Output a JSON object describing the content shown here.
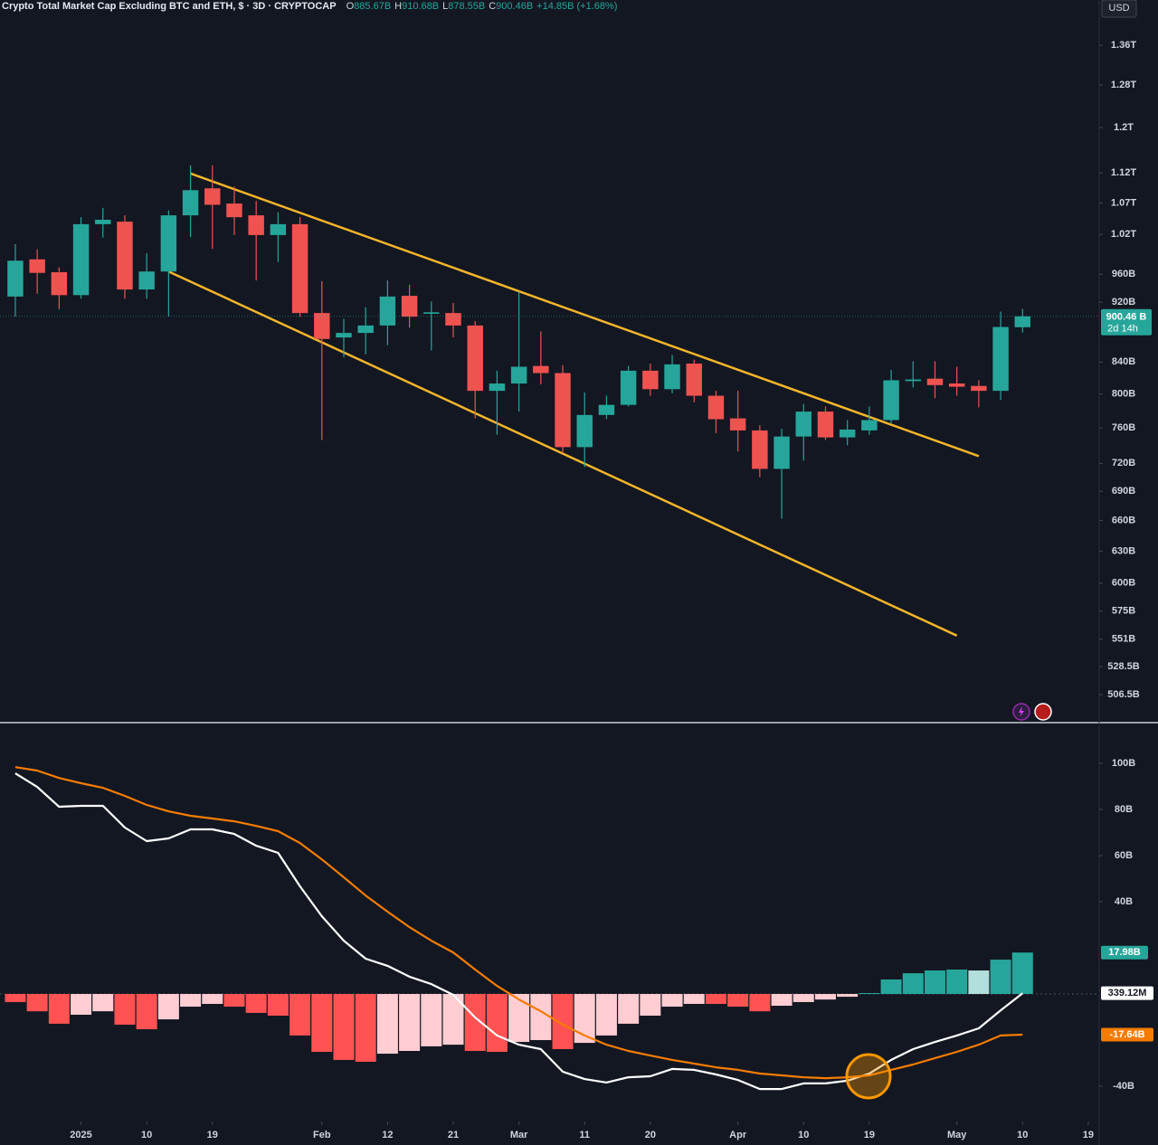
{
  "header": {
    "title": "Crypto Total Market Cap Excluding BTC and ETH, $ · 3D · CRYPTOCAP",
    "legend": [
      {
        "key": "O",
        "value": "885.67B"
      },
      {
        "key": "H",
        "value": "910.68B"
      },
      {
        "key": "L",
        "value": "878.55B"
      },
      {
        "key": "C",
        "value": "900.46B"
      }
    ],
    "change": "+14.85B (+1.68%)",
    "currency": "USD"
  },
  "chart_data": [
    {
      "type": "candlestick",
      "log_scale": true,
      "grid": false,
      "up_color": "#26a69a",
      "down_color": "#ef5350",
      "x": [
        0,
        1,
        2,
        3,
        4,
        5,
        6,
        7,
        8,
        9,
        10,
        11,
        12,
        13,
        14,
        15,
        16,
        17,
        18,
        19,
        20,
        21,
        22,
        23,
        24,
        25,
        26,
        27,
        28,
        29,
        30,
        31,
        32,
        33,
        34,
        35,
        36,
        37,
        38,
        39,
        40,
        41,
        42,
        43,
        44,
        45,
        46
      ],
      "xlim": [
        -0.7,
        49.5
      ],
      "xticks": [
        {
          "value": 3,
          "label": "2025"
        },
        {
          "value": 6,
          "label": "10"
        },
        {
          "value": 9,
          "label": "19"
        },
        {
          "value": 14,
          "label": "Feb"
        },
        {
          "value": 17,
          "label": "12"
        },
        {
          "value": 20,
          "label": "21"
        },
        {
          "value": 23,
          "label": "Mar"
        },
        {
          "value": 26,
          "label": "11"
        },
        {
          "value": 29,
          "label": "20"
        },
        {
          "value": 33,
          "label": "Apr"
        },
        {
          "value": 36,
          "label": "10"
        },
        {
          "value": 39,
          "label": "19"
        },
        {
          "value": 43,
          "label": "May"
        },
        {
          "value": 46,
          "label": "10"
        },
        {
          "value": 49,
          "label": "19"
        }
      ],
      "open": [
        928,
        982,
        963,
        930,
        1036,
        1040,
        938,
        964,
        1050,
        1094,
        1069,
        1050,
        1019,
        1036,
        905,
        872,
        878,
        888,
        929,
        904,
        905,
        888,
        804,
        813,
        835,
        826,
        738,
        775,
        787,
        829,
        806,
        838,
        798,
        771,
        757,
        714,
        750,
        779,
        749,
        757,
        769,
        816,
        819,
        813,
        810,
        804,
        885.67
      ],
      "high": [
        1005,
        997,
        970,
        1047,
        1062,
        1050,
        991,
        1058,
        1133,
        1133,
        1097,
        1073,
        1055,
        1047,
        950,
        897,
        913,
        951,
        945,
        921,
        919,
        894,
        829,
        935,
        880,
        836,
        802,
        798,
        835,
        838,
        849,
        843,
        804,
        804,
        763,
        759,
        788,
        785,
        769,
        785,
        830,
        841,
        841,
        834,
        817,
        907,
        910.68
      ],
      "low": [
        900,
        932,
        910,
        925,
        1015,
        925,
        925,
        900,
        1016,
        998,
        1019,
        951,
        978,
        900,
        746,
        846,
        850,
        862,
        885,
        855,
        872,
        771,
        752,
        779,
        812,
        731,
        716,
        770,
        785,
        798,
        801,
        790,
        754,
        733,
        705,
        662,
        723,
        746,
        740,
        752,
        765,
        808,
        795,
        798,
        784,
        793,
        878.55
      ],
      "close": [
        980,
        962,
        930,
        1036,
        1043,
        938,
        964,
        1050,
        1091,
        1067,
        1047,
        1019,
        1036,
        905,
        870,
        878,
        888,
        928,
        900,
        906,
        888,
        804,
        813,
        834,
        826,
        738,
        775,
        787,
        829,
        806,
        837,
        798,
        770,
        757,
        714,
        750,
        779,
        749,
        758,
        769,
        817,
        818,
        811,
        809,
        804,
        886,
        900.46
      ],
      "ylim": [
        486,
        1457
      ],
      "yticks": [
        {
          "value": 1360,
          "label": "1.36T"
        },
        {
          "value": 1280,
          "label": "1.28T"
        },
        {
          "value": 1200,
          "label": "1.2T"
        },
        {
          "value": 1120,
          "label": "1.12T"
        },
        {
          "value": 1070,
          "label": "1.07T"
        },
        {
          "value": 1020,
          "label": "1.02T"
        },
        {
          "value": 960,
          "label": "960B"
        },
        {
          "value": 920,
          "label": "920B"
        },
        {
          "value": 840,
          "label": "840B"
        },
        {
          "value": 800,
          "label": "800B"
        },
        {
          "value": 760,
          "label": "760B"
        },
        {
          "value": 720,
          "label": "720B"
        },
        {
          "value": 690,
          "label": "690B"
        },
        {
          "value": 660,
          "label": "660B"
        },
        {
          "value": 630,
          "label": "630B"
        },
        {
          "value": 600,
          "label": "600B"
        },
        {
          "value": 575,
          "label": "575B"
        },
        {
          "value": 551,
          "label": "551B"
        },
        {
          "value": 528.5,
          "label": "528.5B"
        },
        {
          "value": 506.5,
          "label": "506.5B"
        }
      ],
      "price_label": "900.46 B",
      "countdown": "2d 14h",
      "trendlines": [
        {
          "x": [
            8,
            44
          ],
          "y": [
            1119,
            728
          ],
          "color": "#f5b52a"
        },
        {
          "x": [
            7,
            43
          ],
          "y": [
            964,
            554
          ],
          "color": "#f5b52a"
        }
      ]
    },
    {
      "type": "macd",
      "x": [
        0,
        1,
        2,
        3,
        4,
        5,
        6,
        7,
        8,
        9,
        10,
        11,
        12,
        13,
        14,
        15,
        16,
        17,
        18,
        19,
        20,
        21,
        22,
        23,
        24,
        25,
        26,
        27,
        28,
        29,
        30,
        31,
        32,
        33,
        34,
        35,
        36,
        37,
        38,
        39,
        40,
        41,
        42,
        43,
        44,
        45,
        46
      ],
      "xlim": [
        -0.7,
        49.5
      ],
      "ylim": [
        -55.3,
        117.3
      ],
      "yticks": [
        {
          "value": 100,
          "label": "100B"
        },
        {
          "value": 80,
          "label": "80B"
        },
        {
          "value": 60,
          "label": "60B"
        },
        {
          "value": 40,
          "label": "40B"
        },
        {
          "value": -40,
          "label": "-40B"
        }
      ],
      "histogram": {
        "values": [
          -3.5,
          -7.5,
          -12.9,
          -9.0,
          -7.5,
          -13.3,
          -15.3,
          -11.0,
          -5.5,
          -4.3,
          -5.5,
          -8.2,
          -9.4,
          -18.0,
          -25.1,
          -28.6,
          -29.4,
          -25.9,
          -24.7,
          -22.7,
          -22.0,
          -24.7,
          -25.1,
          -20.8,
          -20.0,
          -23.9,
          -21.2,
          -18.0,
          -12.9,
          -9.4,
          -5.5,
          -4.3,
          -4.3,
          -5.5,
          -7.5,
          -5.1,
          -3.5,
          -2.4,
          -1.2,
          0.4,
          6.3,
          9.0,
          10.2,
          10.6,
          10.2,
          14.9,
          17.98
        ],
        "colors": {
          "up": "#26a69a",
          "up_fading": "#b2dfdb",
          "down": "#ff5252",
          "down_fading": "#ffcdd2"
        },
        "last_value_label": "17.98B"
      },
      "series": [
        {
          "color": "#ffffff",
          "values": [
            95.7,
            89.8,
            81.2,
            81.6,
            81.6,
            72.2,
            66.3,
            67.5,
            71.4,
            71.4,
            69.4,
            64.3,
            61.2,
            46.7,
            33.7,
            23.1,
            15.3,
            12.2,
            7.5,
            4.3,
            -0.4,
            -10.2,
            -18.0,
            -22.0,
            -23.9,
            -33.7,
            -36.9,
            -38.4,
            -36.1,
            -35.7,
            -32.5,
            -32.9,
            -34.9,
            -37.3,
            -41.2,
            -41.2,
            -38.8,
            -38.8,
            -37.6,
            -34.5,
            -28.6,
            -23.9,
            -20.8,
            -18.0,
            -14.9,
            -7.1,
            0.33912
          ],
          "last_value_label": "339.12M"
        },
        {
          "color": "#f57c00",
          "values": [
            98.4,
            96.9,
            93.7,
            91.4,
            89.4,
            85.9,
            82.0,
            79.2,
            77.3,
            76.1,
            74.9,
            72.9,
            70.6,
            65.5,
            58.4,
            50.6,
            42.7,
            35.7,
            29.0,
            23.1,
            18.0,
            10.6,
            3.5,
            -2.4,
            -7.5,
            -13.3,
            -18.0,
            -22.0,
            -24.7,
            -26.7,
            -28.6,
            -30.2,
            -31.8,
            -32.9,
            -34.5,
            -35.3,
            -36.1,
            -36.5,
            -36.1,
            -35.3,
            -32.9,
            -30.6,
            -27.8,
            -25.1,
            -22.0,
            -18.0,
            -17.64
          ],
          "last_value_label": "-17.64B"
        }
      ]
    }
  ]
}
